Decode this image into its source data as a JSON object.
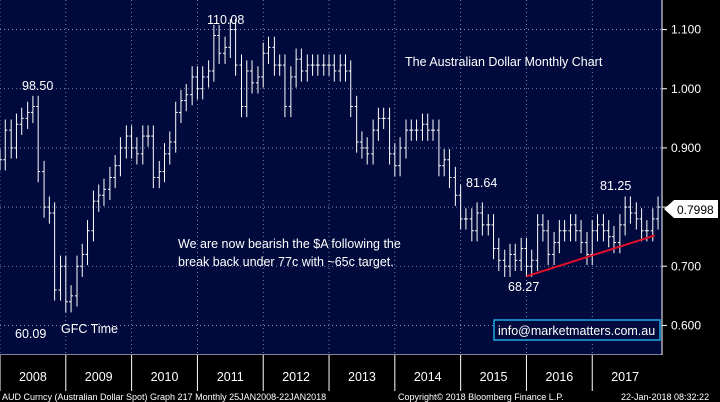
{
  "chart_data": {
    "type": "ohlc",
    "title": "The Australian Dollar Monthly Chart",
    "xlabel": "",
    "ylabel": "",
    "x_range": [
      2008.0,
      2018.06
    ],
    "ylim": [
      0.55,
      1.15
    ],
    "y_ticks": [
      "0.600",
      "0.700",
      "0.800",
      "0.900",
      "1.000",
      "1.100"
    ],
    "x_ticks": [
      "2008",
      "2009",
      "2010",
      "2011",
      "2012",
      "2013",
      "2014",
      "2015",
      "2016",
      "2017"
    ],
    "last_price": "0.7998",
    "series": [
      {
        "name": "AUD Currency",
        "points": [
          [
            2008.0,
            0.88
          ],
          [
            2008.08,
            0.93
          ],
          [
            2008.17,
            0.9
          ],
          [
            2008.25,
            0.94
          ],
          [
            2008.33,
            0.95
          ],
          [
            2008.42,
            0.96
          ],
          [
            2008.5,
            0.97
          ],
          [
            2008.58,
            0.86
          ],
          [
            2008.67,
            0.8
          ],
          [
            2008.75,
            0.79
          ],
          [
            2008.83,
            0.66
          ],
          [
            2008.92,
            0.7
          ],
          [
            2009.0,
            0.64
          ],
          [
            2009.08,
            0.65
          ],
          [
            2009.17,
            0.7
          ],
          [
            2009.25,
            0.72
          ],
          [
            2009.33,
            0.76
          ],
          [
            2009.42,
            0.81
          ],
          [
            2009.5,
            0.82
          ],
          [
            2009.58,
            0.83
          ],
          [
            2009.67,
            0.85
          ],
          [
            2009.75,
            0.87
          ],
          [
            2009.83,
            0.9
          ],
          [
            2009.92,
            0.92
          ],
          [
            2010.0,
            0.9
          ],
          [
            2010.08,
            0.89
          ],
          [
            2010.17,
            0.92
          ],
          [
            2010.25,
            0.92
          ],
          [
            2010.33,
            0.85
          ],
          [
            2010.42,
            0.86
          ],
          [
            2010.5,
            0.89
          ],
          [
            2010.58,
            0.91
          ],
          [
            2010.67,
            0.96
          ],
          [
            2010.75,
            0.98
          ],
          [
            2010.83,
            0.99
          ],
          [
            2010.92,
            1.02
          ],
          [
            2011.0,
            1.0
          ],
          [
            2011.08,
            1.02
          ],
          [
            2011.17,
            1.03
          ],
          [
            2011.25,
            1.09
          ],
          [
            2011.33,
            1.06
          ],
          [
            2011.42,
            1.07
          ],
          [
            2011.5,
            1.1
          ],
          [
            2011.58,
            1.04
          ],
          [
            2011.67,
            0.97
          ],
          [
            2011.75,
            1.03
          ],
          [
            2011.83,
            1.01
          ],
          [
            2011.92,
            1.02
          ],
          [
            2012.0,
            1.06
          ],
          [
            2012.08,
            1.07
          ],
          [
            2012.17,
            1.04
          ],
          [
            2012.25,
            1.04
          ],
          [
            2012.33,
            0.97
          ],
          [
            2012.42,
            1.02
          ],
          [
            2012.5,
            1.05
          ],
          [
            2012.58,
            1.03
          ],
          [
            2012.67,
            1.04
          ],
          [
            2012.75,
            1.04
          ],
          [
            2012.83,
            1.04
          ],
          [
            2012.92,
            1.04
          ],
          [
            2013.0,
            1.04
          ],
          [
            2013.08,
            1.03
          ],
          [
            2013.17,
            1.04
          ],
          [
            2013.25,
            1.03
          ],
          [
            2013.33,
            0.97
          ],
          [
            2013.42,
            0.91
          ],
          [
            2013.5,
            0.9
          ],
          [
            2013.58,
            0.89
          ],
          [
            2013.67,
            0.93
          ],
          [
            2013.75,
            0.95
          ],
          [
            2013.83,
            0.95
          ],
          [
            2013.92,
            0.89
          ],
          [
            2014.0,
            0.87
          ],
          [
            2014.08,
            0.9
          ],
          [
            2014.17,
            0.93
          ],
          [
            2014.25,
            0.93
          ],
          [
            2014.33,
            0.93
          ],
          [
            2014.42,
            0.94
          ],
          [
            2014.5,
            0.93
          ],
          [
            2014.58,
            0.93
          ],
          [
            2014.67,
            0.87
          ],
          [
            2014.75,
            0.88
          ],
          [
            2014.83,
            0.85
          ],
          [
            2014.92,
            0.82
          ],
          [
            2015.0,
            0.78
          ],
          [
            2015.08,
            0.78
          ],
          [
            2015.17,
            0.76
          ],
          [
            2015.25,
            0.79
          ],
          [
            2015.33,
            0.77
          ],
          [
            2015.42,
            0.77
          ],
          [
            2015.5,
            0.73
          ],
          [
            2015.58,
            0.71
          ],
          [
            2015.67,
            0.7
          ],
          [
            2015.75,
            0.72
          ],
          [
            2015.83,
            0.71
          ],
          [
            2015.92,
            0.73
          ],
          [
            2016.0,
            0.7
          ],
          [
            2016.08,
            0.71
          ],
          [
            2016.17,
            0.77
          ],
          [
            2016.25,
            0.76
          ],
          [
            2016.33,
            0.72
          ],
          [
            2016.42,
            0.74
          ],
          [
            2016.5,
            0.76
          ],
          [
            2016.58,
            0.76
          ],
          [
            2016.67,
            0.77
          ],
          [
            2016.75,
            0.76
          ],
          [
            2016.83,
            0.74
          ],
          [
            2016.92,
            0.72
          ],
          [
            2017.0,
            0.76
          ],
          [
            2017.08,
            0.77
          ],
          [
            2017.17,
            0.76
          ],
          [
            2017.25,
            0.75
          ],
          [
            2017.33,
            0.74
          ],
          [
            2017.42,
            0.77
          ],
          [
            2017.5,
            0.8
          ],
          [
            2017.58,
            0.79
          ],
          [
            2017.67,
            0.78
          ],
          [
            2017.75,
            0.76
          ],
          [
            2017.83,
            0.76
          ],
          [
            2017.92,
            0.78
          ],
          [
            2018.0,
            0.8
          ]
        ]
      }
    ],
    "trendline": {
      "from": [
        2016.0,
        0.683
      ],
      "to": [
        2017.95,
        0.752
      ]
    },
    "annotations": [
      {
        "text": "98.50",
        "x": 2008.0,
        "y": 0.985
      },
      {
        "text": "110.08",
        "x": 2011.0,
        "y": 1.1008
      },
      {
        "text": "60.09",
        "x": 2008.0,
        "y": 0.6009
      },
      {
        "text": "GFC Time",
        "x": 2009.0,
        "y": 0.6009
      },
      {
        "text": "81.64",
        "x": 2015.0,
        "y": 0.8164
      },
      {
        "text": "81.25",
        "x": 2017.0,
        "y": 0.8125
      },
      {
        "text": "68.27",
        "x": 2016.0,
        "y": 0.6827
      },
      {
        "text": "We are now bearish the $A following the",
        "x": 2011.0,
        "y": 0.75
      },
      {
        "text": "break back under 77c with ~65c target.",
        "x": 2011.0,
        "y": 0.72
      },
      {
        "text": "info@marketmatters.com.au",
        "x": 2017.0,
        "y": 0.6
      }
    ]
  },
  "colors": {
    "plot_bg": "#000a3c",
    "grid": "#9aa3c8",
    "bars": "#ffffff",
    "trendline": "#e0102a",
    "title": "#5fe0a0",
    "gfc": "#ff8c1a",
    "email_border": "#1ea7e0",
    "price_box": "#ffffff"
  },
  "footer": {
    "left": "AUD Curncy (Australian Dollar Spot) Graph 217  Monthly 25JAN2008-22JAN2018",
    "center": "Copyright© 2018 Bloomberg Finance L.P.",
    "right": "22-Jan-2018 08:32:22"
  }
}
